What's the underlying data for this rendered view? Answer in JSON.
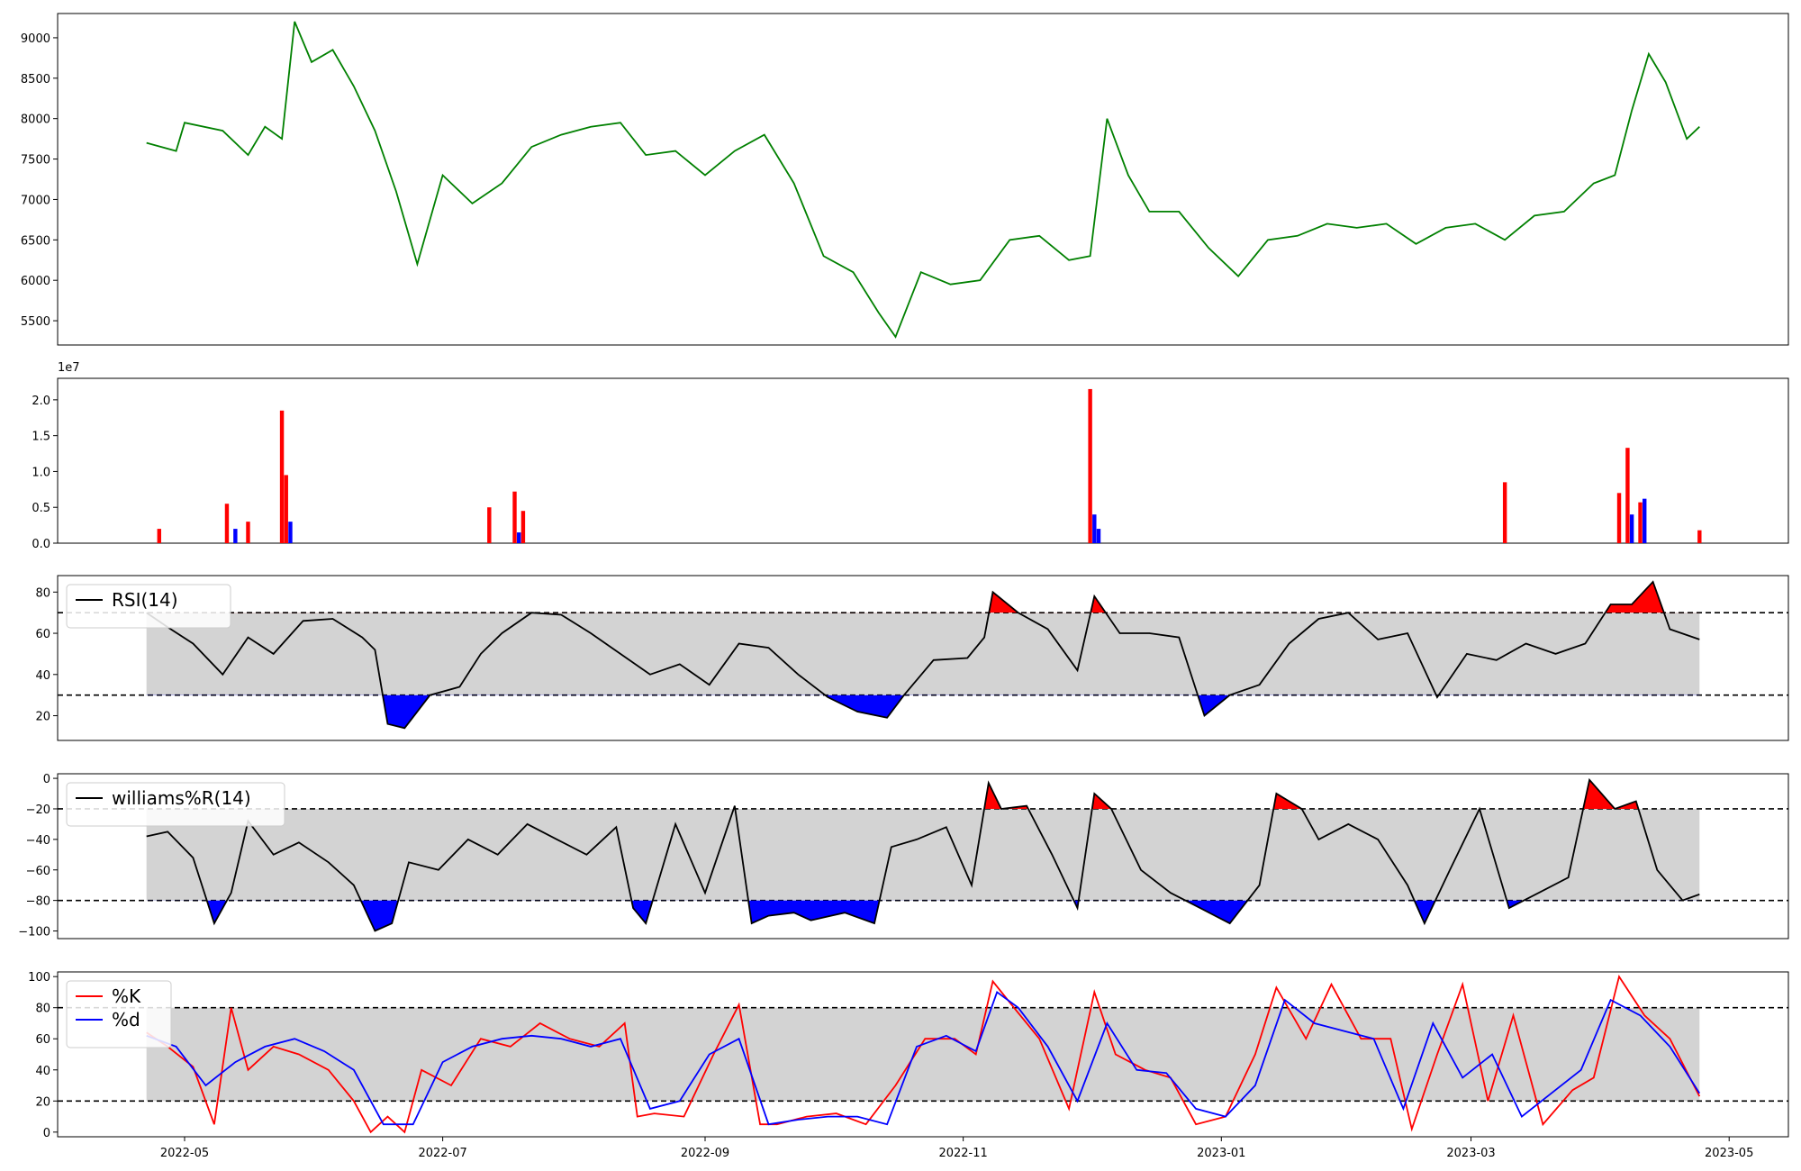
{
  "chart_data": [
    {
      "panel": "price",
      "type": "line",
      "color": "#008000",
      "ylim": [
        5200,
        9300
      ],
      "yticks": [
        5500,
        6000,
        6500,
        7000,
        7500,
        8000,
        8500,
        9000
      ],
      "ytick_labels": [
        "5500",
        "6000",
        "6500",
        "7000",
        "7500",
        "8000",
        "8500",
        "9000"
      ],
      "x": [
        "2022-04-22",
        "2022-04-29",
        "2022-05-01",
        "2022-05-10",
        "2022-05-16",
        "2022-05-20",
        "2022-05-24",
        "2022-05-27",
        "2022-05-31",
        "2022-06-05",
        "2022-06-10",
        "2022-06-15",
        "2022-06-20",
        "2022-06-25",
        "2022-07-01",
        "2022-07-08",
        "2022-07-15",
        "2022-07-22",
        "2022-07-29",
        "2022-08-05",
        "2022-08-12",
        "2022-08-18",
        "2022-08-25",
        "2022-09-01",
        "2022-09-08",
        "2022-09-15",
        "2022-09-22",
        "2022-09-29",
        "2022-10-06",
        "2022-10-12",
        "2022-10-16",
        "2022-10-22",
        "2022-10-29",
        "2022-11-05",
        "2022-11-12",
        "2022-11-19",
        "2022-11-26",
        "2022-12-01",
        "2022-12-05",
        "2022-12-10",
        "2022-12-15",
        "2022-12-22",
        "2022-12-29",
        "2023-01-05",
        "2023-01-12",
        "2023-01-19",
        "2023-01-26",
        "2023-02-02",
        "2023-02-09",
        "2023-02-16",
        "2023-02-23",
        "2023-03-02",
        "2023-03-09",
        "2023-03-16",
        "2023-03-23",
        "2023-03-30",
        "2023-04-04",
        "2023-04-08",
        "2023-04-12",
        "2023-04-16",
        "2023-04-21",
        "2023-04-24"
      ],
      "values": [
        7700,
        7600,
        7950,
        7850,
        7550,
        7900,
        7750,
        9200,
        8700,
        8850,
        8400,
        7850,
        7100,
        6200,
        7300,
        6950,
        7200,
        7650,
        7800,
        7900,
        7950,
        7550,
        7600,
        7300,
        7600,
        7800,
        7200,
        6300,
        6100,
        5600,
        5300,
        6100,
        5950,
        6000,
        6500,
        6550,
        6250,
        6300,
        8000,
        7300,
        6850,
        6850,
        6400,
        6050,
        6500,
        6550,
        6700,
        6650,
        6700,
        6450,
        6650,
        6700,
        6500,
        6800,
        6850,
        7200,
        7300,
        8100,
        8800,
        8450,
        7750,
        7900
      ]
    },
    {
      "panel": "volume",
      "type": "bar",
      "offset_label": "1e7",
      "ylim": [
        0,
        2.3
      ],
      "yticks": [
        0.0,
        0.5,
        1.0,
        1.5,
        2.0
      ],
      "ytick_labels": [
        "0.0",
        "0.5",
        "1.0",
        "1.5",
        "2.0"
      ],
      "colors": {
        "up": "#ff0000",
        "down": "#0000ff"
      },
      "x": [
        "2022-04-25",
        "2022-05-11",
        "2022-05-13",
        "2022-05-16",
        "2022-05-24",
        "2022-05-25",
        "2022-05-26",
        "2022-07-12",
        "2022-07-18",
        "2022-07-19",
        "2022-07-20",
        "2022-12-01",
        "2022-12-02",
        "2022-12-03",
        "2023-03-09",
        "2023-04-05",
        "2023-04-07",
        "2023-04-08",
        "2023-04-10",
        "2023-04-11",
        "2023-04-24"
      ],
      "values": [
        0.2,
        0.55,
        0.2,
        0.3,
        1.85,
        0.95,
        0.3,
        0.5,
        0.72,
        0.15,
        0.45,
        2.15,
        0.4,
        0.2,
        0.85,
        0.7,
        1.33,
        0.4,
        0.57,
        0.62,
        0.18
      ],
      "directions": [
        "up",
        "up",
        "down",
        "up",
        "up",
        "up",
        "down",
        "up",
        "up",
        "down",
        "up",
        "up",
        "down",
        "down",
        "up",
        "up",
        "up",
        "down",
        "up",
        "down",
        "up"
      ]
    },
    {
      "panel": "rsi",
      "type": "line",
      "series_name": "RSI(14)",
      "color": "#000000",
      "ylim": [
        8,
        88
      ],
      "yticks": [
        20,
        40,
        60,
        80
      ],
      "ytick_labels": [
        "20",
        "40",
        "60",
        "80"
      ],
      "band": [
        30,
        70
      ],
      "x": [
        "2022-04-22",
        "2022-04-27",
        "2022-05-03",
        "2022-05-10",
        "2022-05-16",
        "2022-05-22",
        "2022-05-29",
        "2022-06-05",
        "2022-06-12",
        "2022-06-15",
        "2022-06-18",
        "2022-06-22",
        "2022-06-28",
        "2022-07-05",
        "2022-07-10",
        "2022-07-15",
        "2022-07-22",
        "2022-07-29",
        "2022-08-05",
        "2022-08-12",
        "2022-08-19",
        "2022-08-26",
        "2022-09-02",
        "2022-09-09",
        "2022-09-16",
        "2022-09-23",
        "2022-09-30",
        "2022-10-07",
        "2022-10-14",
        "2022-10-18",
        "2022-10-25",
        "2022-11-02",
        "2022-11-06",
        "2022-11-08",
        "2022-11-14",
        "2022-11-21",
        "2022-11-28",
        "2022-12-02",
        "2022-12-08",
        "2022-12-15",
        "2022-12-22",
        "2022-12-28",
        "2023-01-03",
        "2023-01-10",
        "2023-01-17",
        "2023-01-24",
        "2023-01-31",
        "2023-02-07",
        "2023-02-14",
        "2023-02-21",
        "2023-02-28",
        "2023-03-07",
        "2023-03-14",
        "2023-03-21",
        "2023-03-28",
        "2023-04-03",
        "2023-04-08",
        "2023-04-13",
        "2023-04-17",
        "2023-04-24"
      ],
      "values": [
        70,
        63,
        55,
        40,
        58,
        50,
        66,
        67,
        58,
        52,
        16,
        14,
        30,
        34,
        50,
        60,
        70,
        69,
        60,
        50,
        40,
        45,
        35,
        55,
        53,
        40,
        29,
        22,
        19,
        30,
        47,
        48,
        58,
        80,
        70,
        62,
        42,
        78,
        60,
        60,
        58,
        20,
        30,
        35,
        55,
        67,
        70,
        57,
        60,
        29,
        50,
        47,
        55,
        50,
        55,
        74,
        74,
        85,
        62,
        57
      ]
    },
    {
      "panel": "williams",
      "type": "line",
      "series_name": "williams%R(14)",
      "color": "#000000",
      "ylim": [
        -105,
        3
      ],
      "yticks": [
        0,
        -20,
        -40,
        -60,
        -80,
        -100
      ],
      "ytick_labels": [
        "0",
        "−20",
        "−40",
        "−60",
        "−80",
        "−100"
      ],
      "band": [
        -80,
        -20
      ],
      "x": [
        "2022-04-22",
        "2022-04-27",
        "2022-05-03",
        "2022-05-08",
        "2022-05-12",
        "2022-05-16",
        "2022-05-22",
        "2022-05-28",
        "2022-06-04",
        "2022-06-10",
        "2022-06-15",
        "2022-06-19",
        "2022-06-23",
        "2022-06-30",
        "2022-07-07",
        "2022-07-14",
        "2022-07-21",
        "2022-07-28",
        "2022-08-04",
        "2022-08-11",
        "2022-08-15",
        "2022-08-18",
        "2022-08-25",
        "2022-09-01",
        "2022-09-08",
        "2022-09-12",
        "2022-09-16",
        "2022-09-22",
        "2022-09-26",
        "2022-10-04",
        "2022-10-11",
        "2022-10-15",
        "2022-10-21",
        "2022-10-28",
        "2022-11-03",
        "2022-11-07",
        "2022-11-10",
        "2022-11-16",
        "2022-11-22",
        "2022-11-28",
        "2022-12-02",
        "2022-12-06",
        "2022-12-13",
        "2022-12-20",
        "2022-12-27",
        "2023-01-03",
        "2023-01-10",
        "2023-01-14",
        "2023-01-20",
        "2023-01-24",
        "2023-01-31",
        "2023-02-07",
        "2023-02-14",
        "2023-02-18",
        "2023-02-24",
        "2023-03-03",
        "2023-03-10",
        "2023-03-17",
        "2023-03-24",
        "2023-03-29",
        "2023-04-04",
        "2023-04-09",
        "2023-04-14",
        "2023-04-20",
        "2023-04-24"
      ],
      "values": [
        -38,
        -35,
        -52,
        -95,
        -75,
        -28,
        -50,
        -42,
        -55,
        -70,
        -100,
        -95,
        -55,
        -60,
        -40,
        -50,
        -30,
        -40,
        -50,
        -32,
        -85,
        -95,
        -30,
        -75,
        -18,
        -95,
        -90,
        -88,
        -93,
        -88,
        -95,
        -45,
        -40,
        -32,
        -70,
        -3,
        -20,
        -18,
        -50,
        -85,
        -10,
        -20,
        -60,
        -75,
        -85,
        -95,
        -70,
        -10,
        -20,
        -40,
        -30,
        -40,
        -70,
        -95,
        -60,
        -20,
        -85,
        -75,
        -65,
        -1,
        -20,
        -15,
        -60,
        -80,
        -76
      ]
    },
    {
      "panel": "stochastic",
      "type": "line",
      "ylim": [
        -3,
        103
      ],
      "yticks": [
        0,
        20,
        40,
        60,
        80,
        100
      ],
      "ytick_labels": [
        "0",
        "20",
        "40",
        "60",
        "80",
        "100"
      ],
      "band": [
        20,
        80
      ],
      "series": [
        {
          "name": "%K",
          "color": "#ff0000",
          "x": [
            "2022-04-22",
            "2022-04-27",
            "2022-05-03",
            "2022-05-08",
            "2022-05-12",
            "2022-05-16",
            "2022-05-22",
            "2022-05-28",
            "2022-06-04",
            "2022-06-10",
            "2022-06-14",
            "2022-06-18",
            "2022-06-22",
            "2022-06-26",
            "2022-07-03",
            "2022-07-10",
            "2022-07-17",
            "2022-07-24",
            "2022-07-31",
            "2022-08-07",
            "2022-08-13",
            "2022-08-16",
            "2022-08-20",
            "2022-08-27",
            "2022-09-03",
            "2022-09-09",
            "2022-09-14",
            "2022-09-18",
            "2022-09-25",
            "2022-10-02",
            "2022-10-09",
            "2022-10-16",
            "2022-10-23",
            "2022-10-30",
            "2022-11-04",
            "2022-11-08",
            "2022-11-13",
            "2022-11-19",
            "2022-11-26",
            "2022-12-02",
            "2022-12-07",
            "2022-12-14",
            "2022-12-20",
            "2022-12-26",
            "2023-01-02",
            "2023-01-09",
            "2023-01-14",
            "2023-01-21",
            "2023-01-27",
            "2023-02-03",
            "2023-02-10",
            "2023-02-15",
            "2023-02-21",
            "2023-02-27",
            "2023-03-05",
            "2023-03-11",
            "2023-03-18",
            "2023-03-25",
            "2023-03-30",
            "2023-04-05",
            "2023-04-11",
            "2023-04-17",
            "2023-04-24"
          ],
          "values": [
            64,
            55,
            42,
            5,
            80,
            40,
            55,
            50,
            40,
            20,
            0,
            10,
            0,
            40,
            30,
            60,
            55,
            70,
            60,
            55,
            70,
            10,
            12,
            10,
            50,
            82,
            5,
            5,
            10,
            12,
            5,
            30,
            60,
            60,
            50,
            97,
            80,
            60,
            15,
            90,
            50,
            40,
            35,
            5,
            10,
            50,
            93,
            60,
            95,
            60,
            60,
            2,
            50,
            95,
            20,
            75,
            5,
            27,
            35,
            100,
            75,
            60,
            23
          ]
        },
        {
          "name": "%d",
          "color": "#0000ff",
          "x": [
            "2022-04-22",
            "2022-04-29",
            "2022-05-06",
            "2022-05-13",
            "2022-05-20",
            "2022-05-27",
            "2022-06-03",
            "2022-06-10",
            "2022-06-17",
            "2022-06-24",
            "2022-07-01",
            "2022-07-08",
            "2022-07-15",
            "2022-07-22",
            "2022-07-29",
            "2022-08-05",
            "2022-08-12",
            "2022-08-19",
            "2022-08-26",
            "2022-09-02",
            "2022-09-09",
            "2022-09-16",
            "2022-09-23",
            "2022-09-30",
            "2022-10-07",
            "2022-10-14",
            "2022-10-21",
            "2022-10-28",
            "2022-11-04",
            "2022-11-09",
            "2022-11-14",
            "2022-11-21",
            "2022-11-28",
            "2022-12-05",
            "2022-12-12",
            "2022-12-19",
            "2022-12-26",
            "2023-01-02",
            "2023-01-09",
            "2023-01-16",
            "2023-01-23",
            "2023-01-30",
            "2023-02-06",
            "2023-02-13",
            "2023-02-20",
            "2023-02-27",
            "2023-03-06",
            "2023-03-13",
            "2023-03-20",
            "2023-03-27",
            "2023-04-03",
            "2023-04-10",
            "2023-04-17",
            "2023-04-24"
          ],
          "values": [
            62,
            55,
            30,
            45,
            55,
            60,
            52,
            40,
            5,
            5,
            45,
            55,
            60,
            62,
            60,
            55,
            60,
            15,
            20,
            50,
            60,
            5,
            8,
            10,
            10,
            5,
            55,
            62,
            52,
            90,
            80,
            55,
            20,
            70,
            40,
            38,
            15,
            10,
            30,
            85,
            70,
            65,
            60,
            15,
            70,
            35,
            50,
            10,
            25,
            40,
            85,
            75,
            55,
            25
          ]
        }
      ]
    }
  ],
  "x_axis": {
    "ticks": [
      "2022-05",
      "2022-07",
      "2022-09",
      "2022-11",
      "2023-01",
      "2023-03",
      "2023-05"
    ],
    "xlim": [
      "2022-04-01",
      "2023-05-15"
    ]
  }
}
